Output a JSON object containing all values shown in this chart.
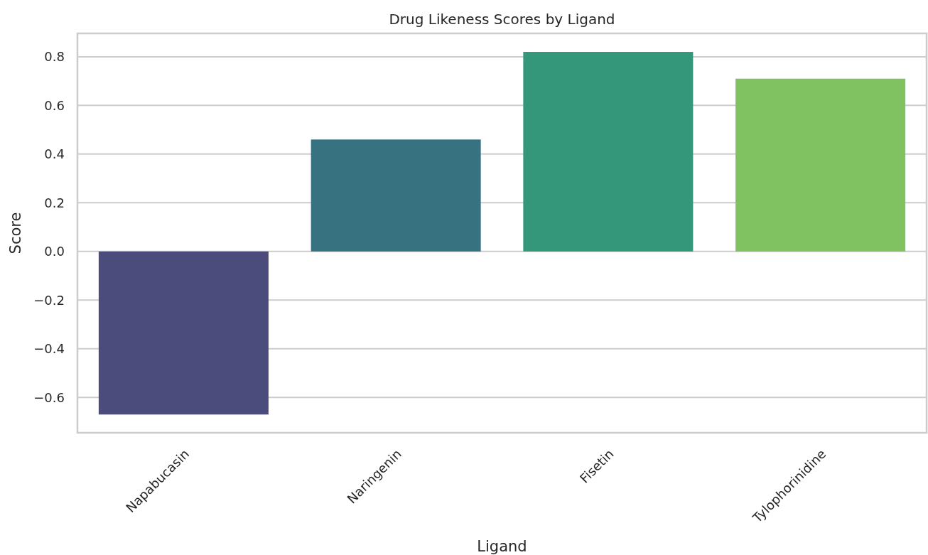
{
  "chart_data": {
    "type": "bar",
    "title": "Drug Likeness Scores by Ligand",
    "xlabel": "Ligand",
    "ylabel": "Score",
    "categories": [
      "Napabucasin",
      "Naringenin",
      "Fisetin",
      "Tylophorinidine"
    ],
    "values": [
      -0.67,
      0.46,
      0.82,
      0.71
    ],
    "colors": [
      "#4b4b7c",
      "#367280",
      "#35977a",
      "#80c161"
    ],
    "ylim": [
      -0.745,
      0.896
    ],
    "yticks": [
      {
        "value": -0.6,
        "label": "−0.6"
      },
      {
        "value": -0.4,
        "label": "−0.4"
      },
      {
        "value": -0.2,
        "label": "−0.2"
      },
      {
        "value": 0,
        "label": "0.0"
      },
      {
        "value": 0.2,
        "label": "0.2"
      },
      {
        "value": 0.4,
        "label": "0.4"
      },
      {
        "value": 0.6,
        "label": "0.6"
      },
      {
        "value": 0.8,
        "label": "0.8"
      }
    ],
    "grid": "y"
  }
}
